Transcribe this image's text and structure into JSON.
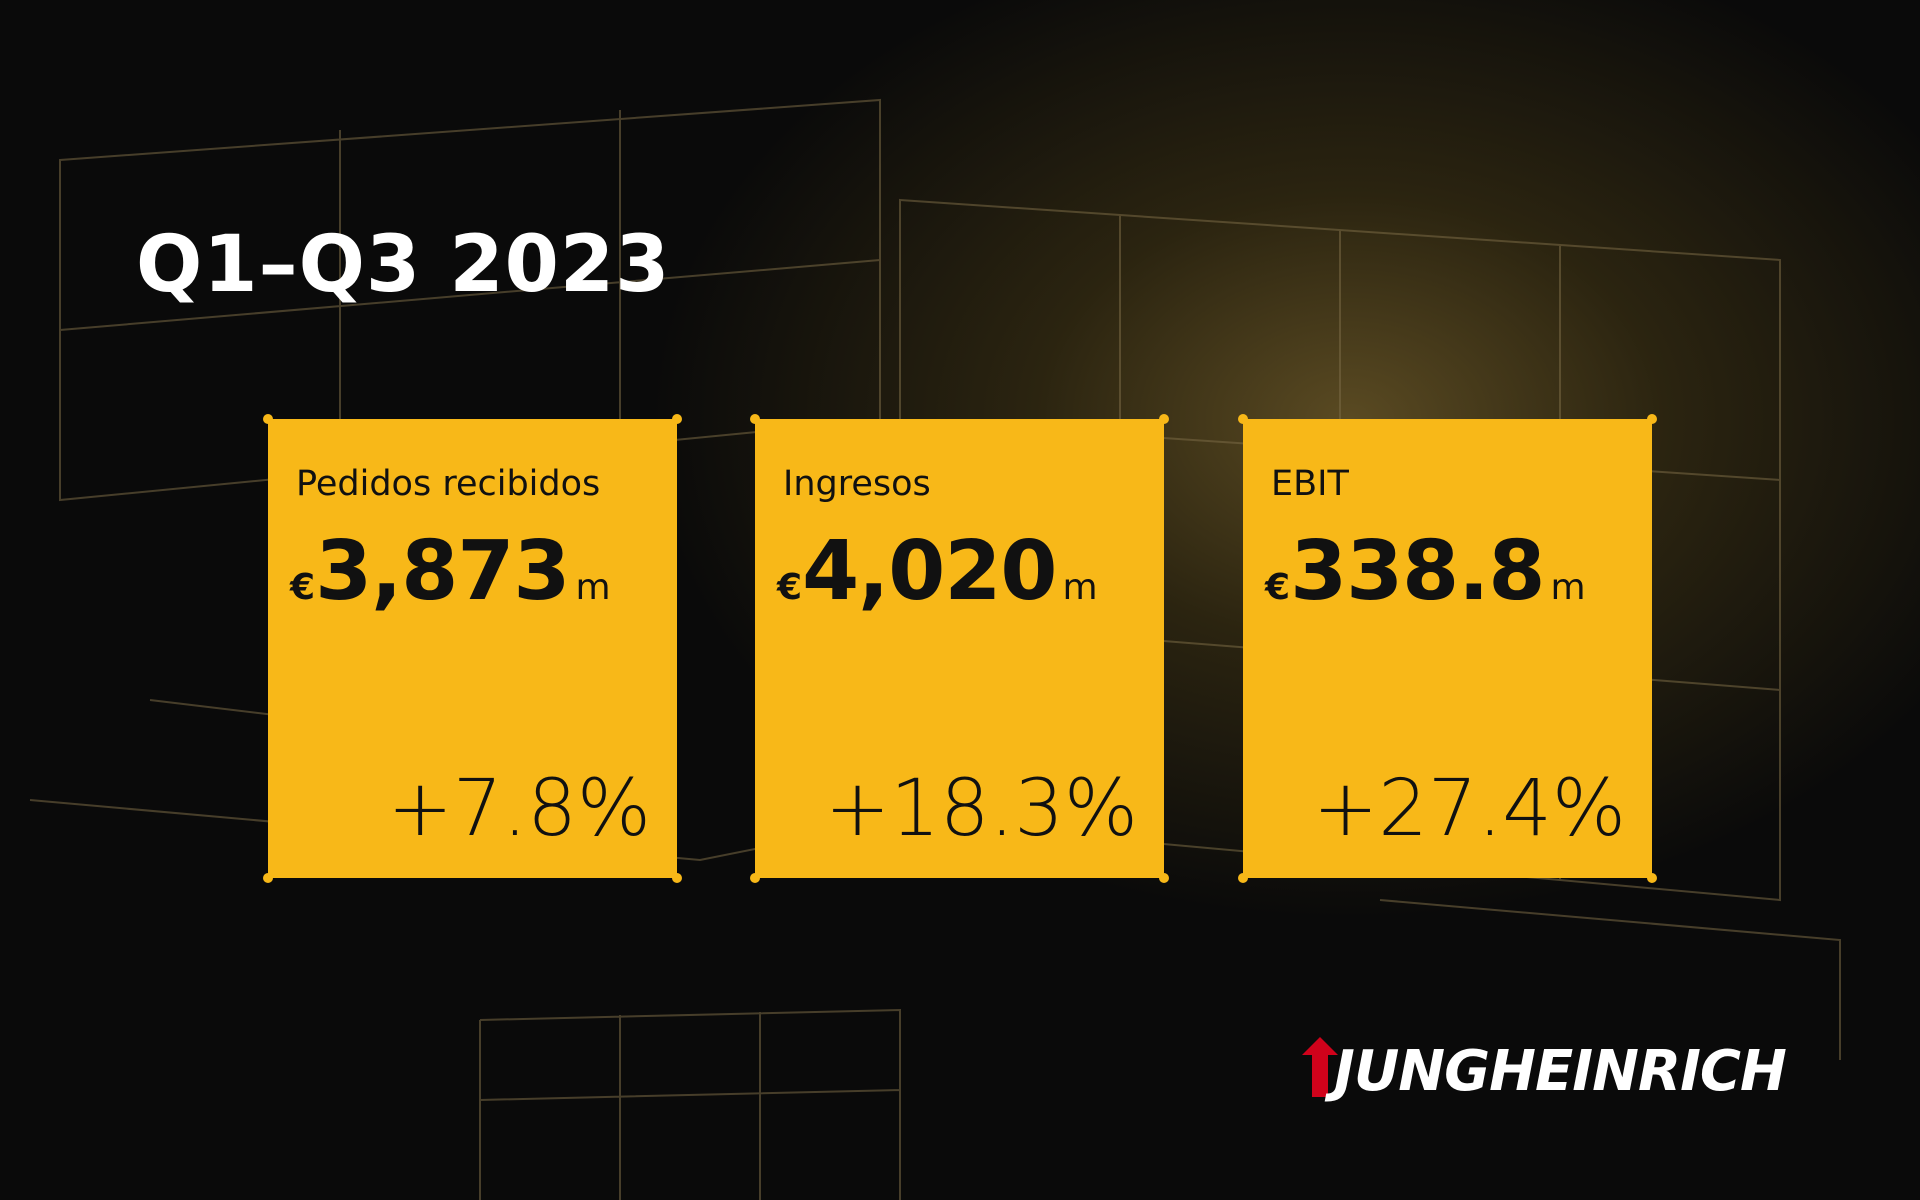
{
  "header": {
    "title": "Q1–Q3 2023"
  },
  "cards": [
    {
      "label": "Pedidos recibidos",
      "currency": "€",
      "value": "3,873",
      "unit": "m",
      "change": "+7.8%"
    },
    {
      "label": "Ingresos",
      "currency": "€",
      "value": "4,020",
      "unit": "m",
      "change": "+18.3%"
    },
    {
      "label": "EBIT",
      "currency": "€",
      "value": "338.8",
      "unit": "m",
      "change": "+27.4%"
    }
  ],
  "logo": {
    "text": "JUNGHEINRICH"
  }
}
